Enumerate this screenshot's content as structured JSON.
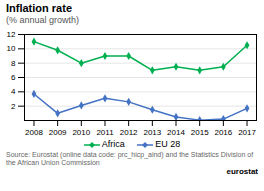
{
  "chart_data": {
    "type": "line",
    "title": "Inflation rate",
    "subtitle": "(% annual growth)",
    "x": [
      2008,
      2009,
      2010,
      2011,
      2012,
      2013,
      2014,
      2015,
      2016,
      2017
    ],
    "series": [
      {
        "name": "Africa",
        "color": "#00b050",
        "marker": "diamond",
        "values": [
          11.0,
          9.8,
          8.0,
          9.0,
          9.0,
          7.0,
          7.5,
          7.0,
          7.5,
          10.5
        ]
      },
      {
        "name": "EU 28",
        "color": "#4472c4",
        "marker": "diamond",
        "values": [
          3.7,
          1.0,
          2.1,
          3.1,
          2.6,
          1.5,
          0.5,
          0.05,
          0.2,
          1.7
        ]
      }
    ],
    "xlim": [
      2007.6,
      2017.4
    ],
    "xticks": [
      2008,
      2009,
      2010,
      2011,
      2012,
      2013,
      2014,
      2015,
      2016,
      2017
    ],
    "ylim": [
      0,
      12
    ],
    "yticks": [
      2,
      4,
      6,
      8,
      10,
      12
    ],
    "grid": true,
    "legend": "bottom",
    "annotations": [
      "Source: Eurostat (online data code: prc_hicp_aind) and the Statistics Division of the African Union Commission",
      "eurostat"
    ]
  }
}
